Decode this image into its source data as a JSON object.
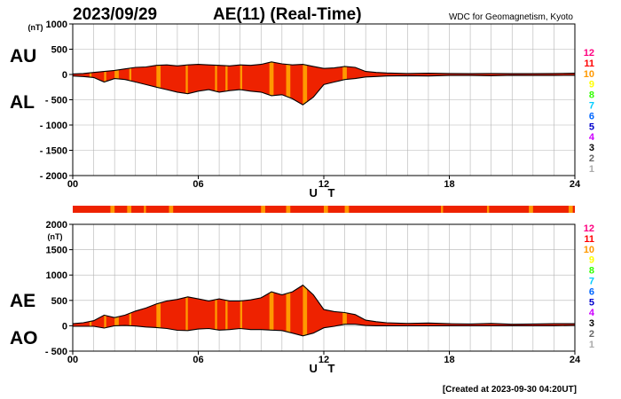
{
  "header": {
    "date": "2023/09/29",
    "title": "AE(11) (Real-Time)",
    "source": "WDC for Geomagnetism, Kyoto"
  },
  "footer": {
    "created": "[Created at 2023-09-30 04:20UT]"
  },
  "colors": {
    "fill_main": "#ee2200",
    "fill_highlight": "#ff9900",
    "trace": "#000000",
    "grid": "#b4b4b4"
  },
  "legend": {
    "items": [
      {
        "label": "12",
        "color": "#ff0080"
      },
      {
        "label": "11",
        "color": "#ff0000"
      },
      {
        "label": "10",
        "color": "#ff9900"
      },
      {
        "label": "9",
        "color": "#ffff00"
      },
      {
        "label": "8",
        "color": "#33ff00"
      },
      {
        "label": "7",
        "color": "#00ccff"
      },
      {
        "label": "6",
        "color": "#0066ff"
      },
      {
        "label": "5",
        "color": "#0000cc"
      },
      {
        "label": "4",
        "color": "#cc00ff"
      },
      {
        "label": "3",
        "color": "#000000"
      },
      {
        "label": "2",
        "color": "#666666"
      },
      {
        "label": "1",
        "color": "#aaaaaa"
      }
    ]
  },
  "chart_data": [
    {
      "type": "area",
      "id": "au-al",
      "unit_label": "(nT)",
      "label_upper": "AU",
      "label_lower": "AL",
      "xlabel": "U T",
      "xlim": [
        0,
        24
      ],
      "ylim": [
        -2000,
        1000
      ],
      "x_ticks": [
        0,
        6,
        12,
        18,
        24
      ],
      "x_tick_labels": [
        "00",
        "06",
        "12",
        "18",
        "24"
      ],
      "y_tick_labels": [
        "1000",
        "500",
        "0",
        "- 500",
        "- 1000",
        "- 1500",
        "- 2000"
      ],
      "x": [
        0,
        0.5,
        1,
        1.5,
        2,
        2.5,
        3,
        3.5,
        4,
        4.5,
        5,
        5.5,
        6,
        6.5,
        7,
        7.5,
        8,
        8.5,
        9,
        9.5,
        10,
        10.5,
        11,
        11.5,
        12,
        12.5,
        13,
        13.5,
        14,
        14.5,
        15,
        16,
        17,
        18,
        19,
        20,
        21,
        22,
        23,
        24
      ],
      "series": [
        {
          "name": "AU",
          "values": [
            10,
            20,
            40,
            60,
            80,
            110,
            140,
            150,
            180,
            190,
            170,
            190,
            200,
            190,
            180,
            170,
            190,
            180,
            200,
            250,
            210,
            190,
            200,
            160,
            120,
            130,
            160,
            140,
            60,
            40,
            30,
            20,
            25,
            20,
            15,
            20,
            15,
            15,
            20,
            25
          ]
        },
        {
          "name": "AL",
          "values": [
            -30,
            -40,
            -60,
            -150,
            -80,
            -100,
            -150,
            -200,
            -250,
            -300,
            -350,
            -380,
            -330,
            -300,
            -350,
            -320,
            -300,
            -330,
            -350,
            -420,
            -400,
            -480,
            -600,
            -450,
            -200,
            -150,
            -100,
            -80,
            -50,
            -40,
            -30,
            -25,
            -30,
            -20,
            -20,
            -25,
            -15,
            -20,
            -20,
            -15
          ]
        }
      ],
      "highlights": [
        [
          0.8,
          0.9
        ],
        [
          1.5,
          1.6
        ],
        [
          2.0,
          2.2
        ],
        [
          2.7,
          2.8
        ],
        [
          4.0,
          4.2
        ],
        [
          5.4,
          5.5
        ],
        [
          6.8,
          6.9
        ],
        [
          7.3,
          7.4
        ],
        [
          8.0,
          8.1
        ],
        [
          9.4,
          9.6
        ],
        [
          10.2,
          10.4
        ],
        [
          11.0,
          11.2
        ],
        [
          12.9,
          13.1
        ]
      ]
    },
    {
      "type": "bar",
      "id": "strip",
      "xlim": [
        0,
        24
      ],
      "highlights": [
        [
          1.8,
          2.0
        ],
        [
          2.6,
          2.8
        ],
        [
          3.4,
          3.5
        ],
        [
          4.6,
          4.8
        ],
        [
          9.0,
          9.2
        ],
        [
          10.2,
          10.4
        ],
        [
          12.0,
          12.2
        ],
        [
          13.0,
          13.2
        ],
        [
          17.6,
          17.7
        ],
        [
          19.8,
          19.9
        ],
        [
          21.8,
          22.0
        ],
        [
          23.7,
          23.9
        ]
      ]
    },
    {
      "type": "area",
      "id": "ae-ao",
      "unit_label": "(nT)",
      "label_upper": "AE",
      "label_lower": "AO",
      "xlabel": "U T",
      "xlim": [
        0,
        24
      ],
      "ylim": [
        -500,
        2000
      ],
      "x_ticks": [
        0,
        6,
        12,
        18,
        24
      ],
      "x_tick_labels": [
        "00",
        "06",
        "12",
        "18",
        "24"
      ],
      "y_tick_labels": [
        "2000",
        "1500",
        "1000",
        "500",
        "0",
        "- 500"
      ],
      "x": [
        0,
        0.5,
        1,
        1.5,
        2,
        2.5,
        3,
        3.5,
        4,
        4.5,
        5,
        5.5,
        6,
        6.5,
        7,
        7.5,
        8,
        8.5,
        9,
        9.5,
        10,
        10.5,
        11,
        11.5,
        12,
        12.5,
        13,
        13.5,
        14,
        14.5,
        15,
        16,
        17,
        18,
        19,
        20,
        21,
        22,
        23,
        24
      ],
      "series": [
        {
          "name": "AE",
          "values": [
            40,
            60,
            100,
            210,
            160,
            210,
            290,
            350,
            430,
            490,
            520,
            570,
            530,
            490,
            530,
            490,
            490,
            510,
            550,
            670,
            610,
            670,
            800,
            610,
            320,
            280,
            260,
            220,
            110,
            80,
            60,
            45,
            55,
            40,
            35,
            45,
            30,
            35,
            40,
            40
          ]
        },
        {
          "name": "AO",
          "values": [
            -10,
            -10,
            -10,
            -45,
            0,
            5,
            -5,
            -25,
            -35,
            -55,
            -90,
            -95,
            -65,
            -55,
            -85,
            -75,
            -55,
            -75,
            -75,
            -85,
            -95,
            -145,
            -200,
            -145,
            -40,
            -10,
            30,
            30,
            5,
            0,
            0,
            -2,
            -2,
            0,
            -2,
            -2,
            0,
            -2,
            0,
            5
          ]
        }
      ],
      "highlights": [
        [
          0.8,
          0.9
        ],
        [
          1.5,
          1.6
        ],
        [
          2.0,
          2.2
        ],
        [
          2.7,
          2.8
        ],
        [
          4.0,
          4.2
        ],
        [
          5.4,
          5.5
        ],
        [
          6.8,
          6.9
        ],
        [
          7.3,
          7.4
        ],
        [
          8.0,
          8.1
        ],
        [
          9.4,
          9.6
        ],
        [
          10.2,
          10.4
        ],
        [
          11.0,
          11.2
        ],
        [
          12.9,
          13.1
        ]
      ]
    }
  ]
}
